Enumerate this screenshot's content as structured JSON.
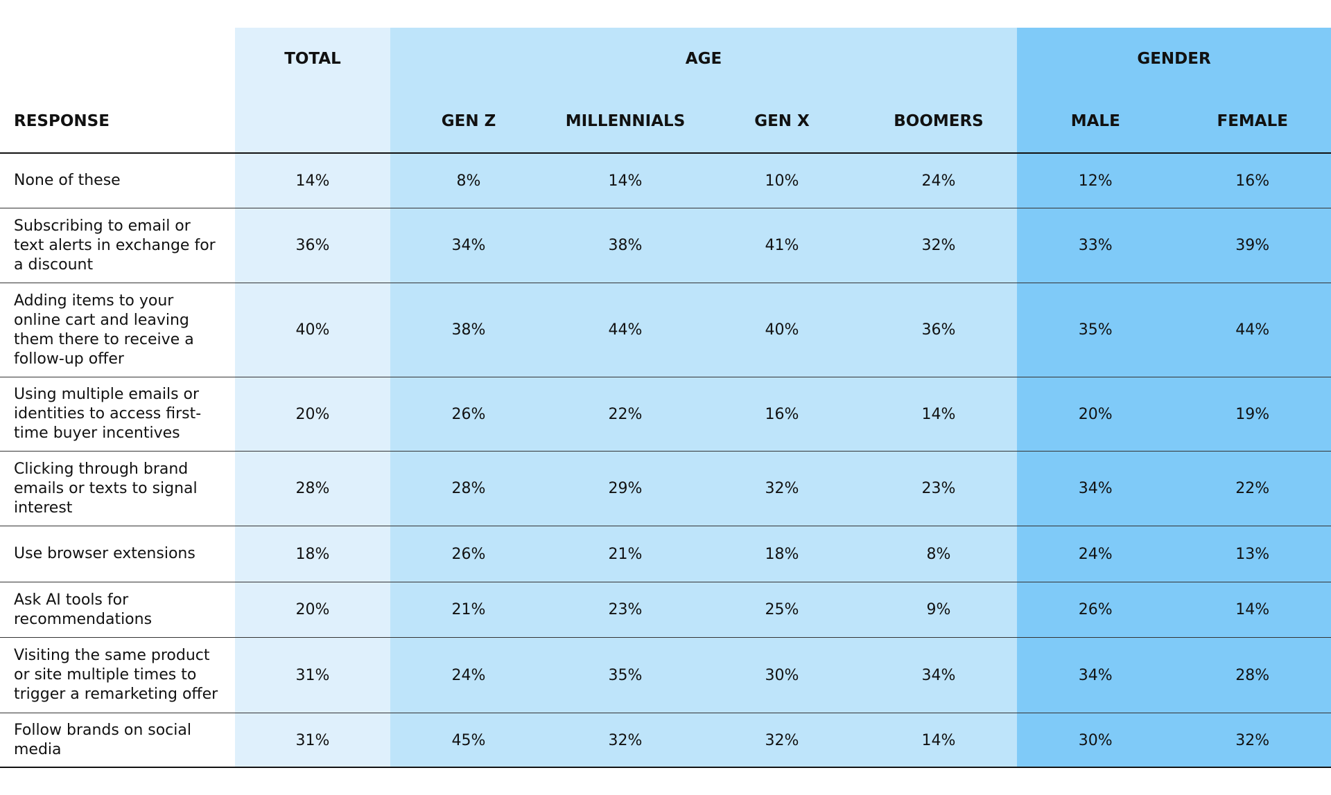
{
  "table": {
    "groups": [
      "TOTAL",
      "AGE",
      "GENDER"
    ],
    "columns": [
      "RESPONSE",
      "GEN Z",
      "MILLENNIALS",
      "GEN X",
      "BOOMERS",
      "MALE",
      "FEMALE"
    ],
    "rows": [
      {
        "response": "None of these",
        "values": [
          "14%",
          "8%",
          "14%",
          "10%",
          "24%",
          "12%",
          "16%"
        ]
      },
      {
        "response": "Subscribing to email or text alerts in exchange for a discount",
        "values": [
          "36%",
          "34%",
          "38%",
          "41%",
          "32%",
          "33%",
          "39%"
        ]
      },
      {
        "response": "Adding items to your online cart and leaving them there to receive a follow-up offer",
        "values": [
          "40%",
          "38%",
          "44%",
          "40%",
          "36%",
          "35%",
          "44%"
        ]
      },
      {
        "response": "Using multiple emails or identities to access first-time buyer incentives",
        "values": [
          "20%",
          "26%",
          "22%",
          "16%",
          "14%",
          "20%",
          "19%"
        ]
      },
      {
        "response": "Clicking through brand emails or texts to signal interest",
        "values": [
          "28%",
          "28%",
          "29%",
          "32%",
          "23%",
          "34%",
          "22%"
        ]
      },
      {
        "response": "Use browser extensions",
        "values": [
          "18%",
          "26%",
          "21%",
          "18%",
          "8%",
          "24%",
          "13%"
        ]
      },
      {
        "response": "Ask AI tools for recommendations",
        "values": [
          "20%",
          "21%",
          "23%",
          "25%",
          "9%",
          "26%",
          "14%"
        ]
      },
      {
        "response": "Visiting the same product or site multiple times to trigger a remarketing offer",
        "values": [
          "31%",
          "24%",
          "35%",
          "30%",
          "34%",
          "34%",
          "28%"
        ]
      },
      {
        "response": "Follow brands on social media",
        "values": [
          "31%",
          "45%",
          "32%",
          "32%",
          "14%",
          "30%",
          "32%"
        ]
      }
    ]
  }
}
